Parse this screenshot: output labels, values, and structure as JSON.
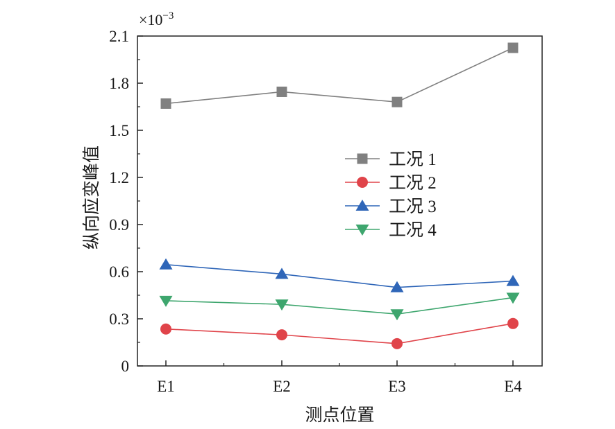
{
  "chart_data": {
    "type": "line",
    "title": "",
    "xlabel": "测点位置",
    "ylabel": "纵向应变峰值",
    "y_scale_label": "×10",
    "y_scale_exponent": "−3",
    "categories": [
      "E1",
      "E2",
      "E3",
      "E4"
    ],
    "ylim": [
      0,
      2.1
    ],
    "yticks": [
      "0",
      "0.3",
      "0.6",
      "0.9",
      "1.2",
      "1.5",
      "1.8",
      "2.1"
    ],
    "legend_position": "center-right",
    "series": [
      {
        "name": "工况 1",
        "values": [
          1.67,
          1.745,
          1.68,
          2.025
        ],
        "color": "#808080",
        "marker": "square"
      },
      {
        "name": "工况 2",
        "values": [
          0.235,
          0.198,
          0.142,
          0.27
        ],
        "color": "#e0444a",
        "marker": "circle"
      },
      {
        "name": "工况 3",
        "values": [
          0.645,
          0.585,
          0.5,
          0.54
        ],
        "color": "#2f66b8",
        "marker": "triangle-up"
      },
      {
        "name": "工况 4",
        "values": [
          0.415,
          0.392,
          0.33,
          0.435
        ],
        "color": "#3ea66e",
        "marker": "triangle-down"
      }
    ]
  }
}
